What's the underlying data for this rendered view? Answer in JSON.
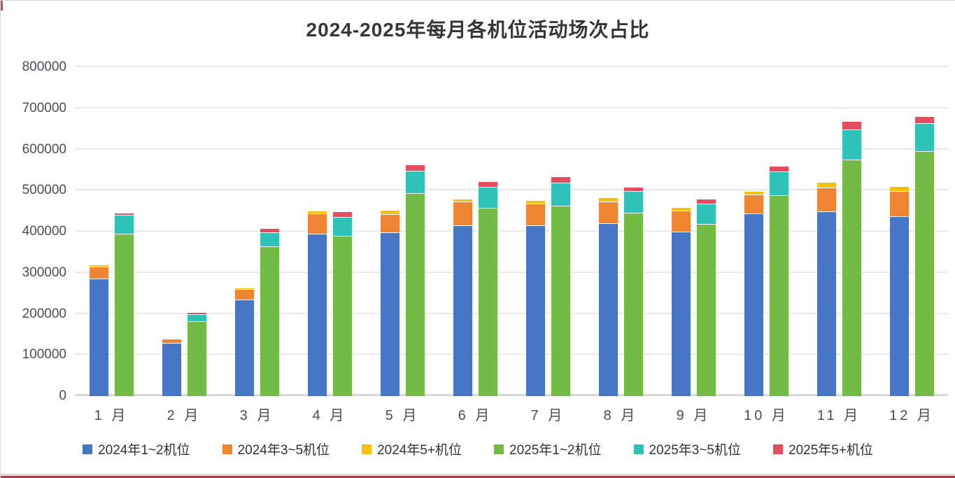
{
  "chart_data": {
    "type": "bar",
    "stacked": true,
    "title": "2024-2025年每月各机位活动场次占比",
    "categories": [
      "1 月",
      "2 月",
      "3 月",
      "4 月",
      "5 月",
      "6 月",
      "7 月",
      "8 月",
      "9 月",
      "10 月",
      "11 月",
      "12 月"
    ],
    "ylim": [
      0,
      800000
    ],
    "ytick_step": 100000,
    "yticks": [
      0,
      100000,
      200000,
      300000,
      400000,
      500000,
      600000,
      700000,
      800000
    ],
    "grid": true,
    "legend_position": "bottom",
    "groups": [
      "y2024",
      "y2025"
    ],
    "series": [
      {
        "name": "2024年1~2机位",
        "group": "y2024",
        "color": "#4876C6",
        "values": [
          285000,
          128000,
          234000,
          394000,
          396000,
          414000,
          413000,
          418000,
          399000,
          442000,
          447000,
          436000
        ]
      },
      {
        "name": "2024年3~5机位",
        "group": "y2024",
        "color": "#EF8533",
        "values": [
          28000,
          10000,
          24000,
          49000,
          45000,
          57000,
          54000,
          54000,
          51000,
          46000,
          59000,
          61000
        ]
      },
      {
        "name": "2024年5+机位",
        "group": "y2024",
        "color": "#F4C20D",
        "values": [
          5000,
          2000,
          4000,
          7000,
          10000,
          7000,
          8000,
          9000,
          8000,
          9000,
          14000,
          12000
        ]
      },
      {
        "name": "2025年1~2机位",
        "group": "y2025",
        "color": "#72BB44",
        "values": [
          393000,
          180000,
          363000,
          388000,
          492000,
          456000,
          461000,
          445000,
          417000,
          487000,
          573000,
          594000
        ]
      },
      {
        "name": "2025年3~5机位",
        "group": "y2025",
        "color": "#2FC2B8",
        "values": [
          47000,
          17000,
          34000,
          46000,
          54000,
          51000,
          57000,
          52000,
          50000,
          58000,
          74000,
          68000
        ]
      },
      {
        "name": "2025年5+机位",
        "group": "y2025",
        "color": "#E44D5F",
        "values": [
          5000,
          5000,
          10000,
          13000,
          16000,
          14000,
          15000,
          10000,
          11000,
          13000,
          20000,
          17000
        ]
      }
    ]
  }
}
